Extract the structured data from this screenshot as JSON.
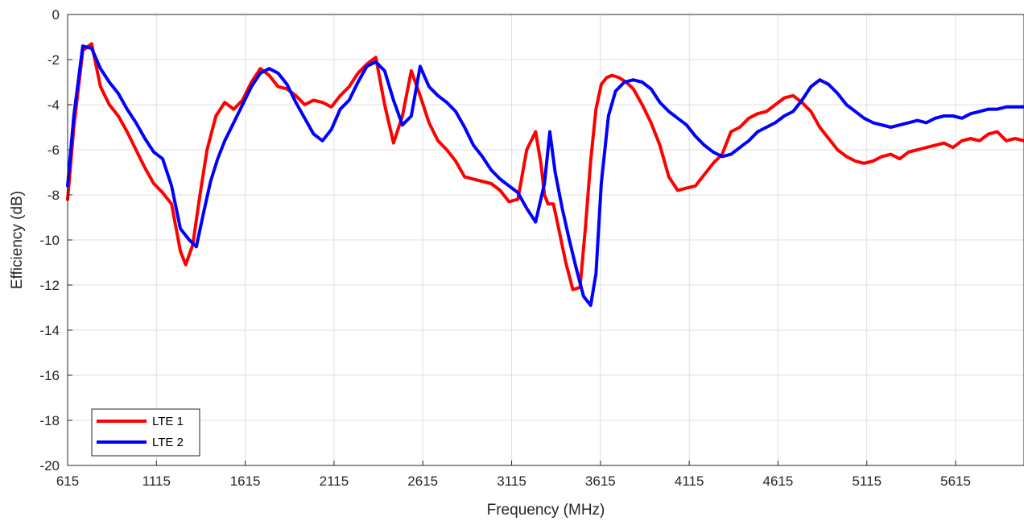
{
  "chart_data": {
    "type": "line",
    "title": "",
    "xlabel": "Frequency (MHz)",
    "ylabel": "Efficiency (dB)",
    "xlim": [
      615,
      6000
    ],
    "ylim": [
      -20,
      0
    ],
    "xticks": [
      615,
      1115,
      1615,
      2115,
      2615,
      3115,
      3615,
      4115,
      4615,
      5115,
      5615
    ],
    "yticks": [
      0,
      -2,
      -4,
      -6,
      -8,
      -10,
      -12,
      -14,
      -16,
      -18,
      -20
    ],
    "grid": true,
    "legend_position": "bottom-left",
    "series": [
      {
        "name": "LTE 1",
        "color": "#ff0000",
        "x": [
          615,
          650,
          700,
          750,
          800,
          850,
          900,
          950,
          1000,
          1050,
          1100,
          1150,
          1200,
          1250,
          1280,
          1320,
          1360,
          1400,
          1450,
          1500,
          1550,
          1600,
          1650,
          1700,
          1750,
          1800,
          1850,
          1900,
          1950,
          2000,
          2050,
          2100,
          2150,
          2200,
          2250,
          2300,
          2350,
          2400,
          2450,
          2500,
          2550,
          2600,
          2650,
          2700,
          2750,
          2800,
          2850,
          2900,
          2950,
          3000,
          3050,
          3100,
          3150,
          3200,
          3250,
          3280,
          3300,
          3320,
          3350,
          3380,
          3420,
          3460,
          3500,
          3530,
          3560,
          3590,
          3620,
          3650,
          3680,
          3720,
          3760,
          3800,
          3850,
          3900,
          3950,
          4000,
          4050,
          4100,
          4150,
          4200,
          4250,
          4300,
          4350,
          4400,
          4450,
          4500,
          4550,
          4600,
          4650,
          4700,
          4750,
          4800,
          4850,
          4900,
          4950,
          5000,
          5050,
          5100,
          5150,
          5200,
          5250,
          5300,
          5350,
          5400,
          5450,
          5500,
          5550,
          5600,
          5650,
          5700,
          5750,
          5800,
          5850,
          5900,
          5950,
          6000
        ],
        "values": [
          -8.2,
          -5.0,
          -1.6,
          -1.3,
          -3.2,
          -4.0,
          -4.5,
          -5.2,
          -6.0,
          -6.8,
          -7.5,
          -7.9,
          -8.4,
          -10.5,
          -11.1,
          -10.2,
          -8.0,
          -6.0,
          -4.5,
          -3.9,
          -4.2,
          -3.8,
          -3.0,
          -2.4,
          -2.7,
          -3.2,
          -3.3,
          -3.6,
          -4.0,
          -3.8,
          -3.9,
          -4.1,
          -3.6,
          -3.2,
          -2.6,
          -2.2,
          -1.9,
          -4.0,
          -5.7,
          -4.5,
          -2.5,
          -3.6,
          -4.8,
          -5.6,
          -6.0,
          -6.5,
          -7.2,
          -7.3,
          -7.4,
          -7.5,
          -7.8,
          -8.3,
          -8.2,
          -6.0,
          -5.2,
          -6.6,
          -8.0,
          -8.4,
          -8.4,
          -9.5,
          -11.0,
          -12.2,
          -12.1,
          -9.5,
          -6.5,
          -4.2,
          -3.1,
          -2.8,
          -2.7,
          -2.8,
          -3.0,
          -3.3,
          -4.0,
          -4.8,
          -5.8,
          -7.2,
          -7.8,
          -7.7,
          -7.6,
          -7.1,
          -6.6,
          -6.2,
          -5.2,
          -5.0,
          -4.6,
          -4.4,
          -4.3,
          -4.0,
          -3.7,
          -3.6,
          -3.9,
          -4.3,
          -5.0,
          -5.5,
          -6.0,
          -6.3,
          -6.5,
          -6.6,
          -6.5,
          -6.3,
          -6.2,
          -6.4,
          -6.1,
          -6.0,
          -5.9,
          -5.8,
          -5.7,
          -5.9,
          -5.6,
          -5.5,
          -5.6,
          -5.3,
          -5.2,
          -5.6,
          -5.5,
          -5.6
        ]
      },
      {
        "name": "LTE 2",
        "color": "#0000ff",
        "x": [
          615,
          650,
          700,
          750,
          800,
          850,
          900,
          950,
          1000,
          1050,
          1100,
          1150,
          1200,
          1250,
          1300,
          1340,
          1380,
          1420,
          1460,
          1500,
          1550,
          1600,
          1650,
          1700,
          1750,
          1800,
          1850,
          1900,
          1950,
          2000,
          2050,
          2100,
          2150,
          2200,
          2250,
          2300,
          2350,
          2400,
          2450,
          2500,
          2550,
          2600,
          2650,
          2700,
          2750,
          2800,
          2850,
          2900,
          2950,
          3000,
          3050,
          3100,
          3150,
          3200,
          3250,
          3300,
          3330,
          3360,
          3400,
          3440,
          3480,
          3520,
          3560,
          3590,
          3620,
          3660,
          3700,
          3750,
          3800,
          3850,
          3900,
          3950,
          4000,
          4050,
          4100,
          4150,
          4200,
          4250,
          4300,
          4350,
          4400,
          4450,
          4500,
          4550,
          4600,
          4650,
          4700,
          4750,
          4800,
          4850,
          4900,
          4950,
          5000,
          5050,
          5100,
          5150,
          5200,
          5250,
          5300,
          5350,
          5400,
          5450,
          5500,
          5550,
          5600,
          5650,
          5700,
          5750,
          5800,
          5850,
          5900,
          5950,
          6000
        ],
        "values": [
          -7.6,
          -4.5,
          -1.4,
          -1.5,
          -2.4,
          -3.0,
          -3.5,
          -4.2,
          -4.8,
          -5.5,
          -6.1,
          -6.4,
          -7.6,
          -9.5,
          -10.0,
          -10.3,
          -8.8,
          -7.4,
          -6.4,
          -5.6,
          -4.8,
          -4.0,
          -3.2,
          -2.6,
          -2.4,
          -2.6,
          -3.1,
          -3.9,
          -4.6,
          -5.3,
          -5.6,
          -5.1,
          -4.2,
          -3.8,
          -3.0,
          -2.3,
          -2.1,
          -2.5,
          -3.8,
          -4.9,
          -4.5,
          -2.3,
          -3.2,
          -3.6,
          -3.9,
          -4.3,
          -5.0,
          -5.8,
          -6.3,
          -6.9,
          -7.3,
          -7.6,
          -7.9,
          -8.6,
          -9.2,
          -7.5,
          -5.2,
          -7.0,
          -8.6,
          -10.0,
          -11.3,
          -12.5,
          -12.9,
          -11.5,
          -7.5,
          -4.5,
          -3.4,
          -3.0,
          -2.9,
          -3.0,
          -3.3,
          -3.9,
          -4.3,
          -4.6,
          -4.9,
          -5.4,
          -5.8,
          -6.1,
          -6.3,
          -6.2,
          -5.9,
          -5.6,
          -5.2,
          -5.0,
          -4.8,
          -4.5,
          -4.3,
          -3.8,
          -3.2,
          -2.9,
          -3.1,
          -3.5,
          -4.0,
          -4.3,
          -4.6,
          -4.8,
          -4.9,
          -5.0,
          -4.9,
          -4.8,
          -4.7,
          -4.8,
          -4.6,
          -4.5,
          -4.5,
          -4.6,
          -4.4,
          -4.3,
          -4.2,
          -4.2,
          -4.1,
          -4.1,
          -4.1
        ]
      }
    ]
  }
}
